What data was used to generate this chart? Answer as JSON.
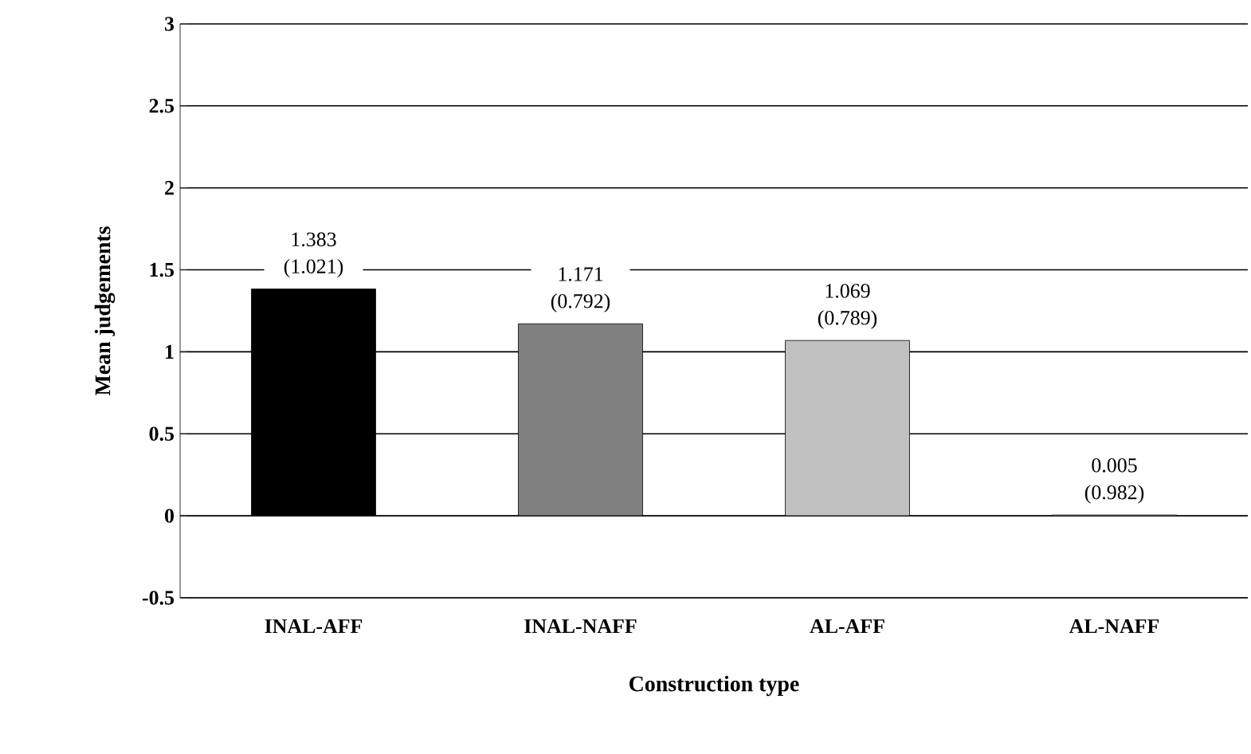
{
  "chart_data": {
    "type": "bar",
    "xlabel": "Construction type",
    "ylabel": "Mean judgements",
    "categories": [
      "INAL-AFF",
      "INAL-NAFF",
      "AL-AFF",
      "AL-NAFF"
    ],
    "values": [
      1.383,
      1.171,
      1.069,
      0.005
    ],
    "colors": [
      "#000000",
      "#808080",
      "#c0c0c0",
      "#ffffff"
    ],
    "value_labels": [
      "1.383 (1.021)",
      "1.171 (0.792)",
      "1.069 (0.789)",
      "0.005 (0.982)"
    ],
    "ylim": [
      -0.5,
      3
    ],
    "yticks": [
      {
        "value": -0.5,
        "label": "-0.5"
      },
      0,
      0.5,
      1,
      1.5,
      2,
      2.5,
      3
    ],
    "grid": "y"
  }
}
